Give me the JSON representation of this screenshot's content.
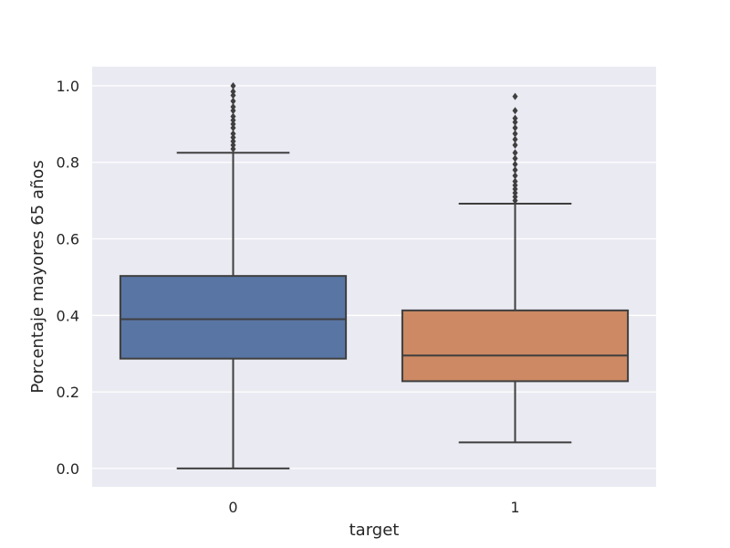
{
  "chart_data": {
    "type": "box",
    "title": "",
    "xlabel": "target",
    "ylabel": "Porcentaje mayores 65 años",
    "ylim": [
      -0.048,
      1.05
    ],
    "yticks": [
      0.0,
      0.2,
      0.4,
      0.6,
      0.8,
      1.0
    ],
    "ytick_labels": [
      "0.0",
      "0.2",
      "0.4",
      "0.6",
      "0.8",
      "1.0"
    ],
    "grid": true,
    "categories": [
      "0",
      "1"
    ],
    "boxes": [
      {
        "category": "0",
        "color": "#5875a4",
        "whisker_low": 0.0,
        "q1": 0.287,
        "median": 0.39,
        "q3": 0.503,
        "whisker_high": 0.825,
        "outliers": [
          0.835,
          0.845,
          0.855,
          0.865,
          0.875,
          0.89,
          0.9,
          0.91,
          0.92,
          0.935,
          0.945,
          0.96,
          0.975,
          0.985,
          1.0
        ]
      },
      {
        "category": "1",
        "color": "#cc8963",
        "whisker_low": 0.068,
        "q1": 0.228,
        "median": 0.295,
        "q3": 0.413,
        "whisker_high": 0.692,
        "outliers": [
          0.7,
          0.71,
          0.72,
          0.73,
          0.74,
          0.75,
          0.765,
          0.78,
          0.795,
          0.81,
          0.825,
          0.845,
          0.86,
          0.875,
          0.89,
          0.905,
          0.915,
          0.935,
          0.972
        ]
      }
    ]
  }
}
